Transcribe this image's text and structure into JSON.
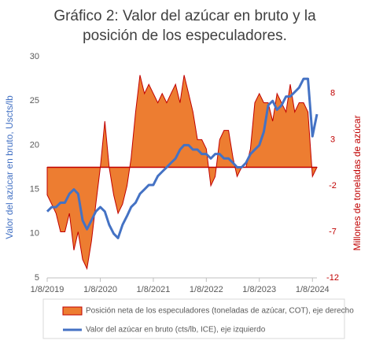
{
  "chart_data": {
    "type": "combo",
    "title": "Gráfico 2: Valor del azúcar en bruto y la posición de los especuladores.",
    "ylabel": "Valor del azúcar en bruto, Uscts/lb",
    "y2label": "Millones de toneladas de azúcar",
    "x": [
      "2019-08-01",
      "2019-09-01",
      "2019-10-01",
      "2019-11-01",
      "2019-12-01",
      "2020-01-01",
      "2020-02-01",
      "2020-03-01",
      "2020-04-01",
      "2020-05-01",
      "2020-06-01",
      "2020-07-01",
      "2020-08-01",
      "2020-09-01",
      "2020-10-01",
      "2020-11-01",
      "2020-12-01",
      "2021-01-01",
      "2021-02-01",
      "2021-03-01",
      "2021-04-01",
      "2021-05-01",
      "2021-06-01",
      "2021-07-01",
      "2021-08-01",
      "2021-09-01",
      "2021-10-01",
      "2021-11-01",
      "2021-12-01",
      "2022-01-01",
      "2022-02-01",
      "2022-03-01",
      "2022-04-01",
      "2022-05-01",
      "2022-06-01",
      "2022-07-01",
      "2022-08-01",
      "2022-09-01",
      "2022-10-01",
      "2022-11-01",
      "2022-12-01",
      "2023-01-01",
      "2023-02-01",
      "2023-03-01",
      "2023-04-01",
      "2023-05-01",
      "2023-06-01",
      "2023-07-01",
      "2023-08-01",
      "2023-09-01",
      "2023-10-01",
      "2023-11-01",
      "2023-12-01",
      "2024-01-01",
      "2024-02-01",
      "2024-03-01",
      "2024-04-01",
      "2024-05-01",
      "2024-06-01",
      "2024-07-01",
      "2024-08-01",
      "2024-09-01"
    ],
    "xlim": [
      "2019-08-01",
      "2024-09-01"
    ],
    "xticks": [
      {
        "value": "2019-08-01",
        "label": "1/8/2019"
      },
      {
        "value": "2020-08-01",
        "label": "1/8/2020"
      },
      {
        "value": "2021-08-01",
        "label": "1/8/2021"
      },
      {
        "value": "2022-08-01",
        "label": "1/8/2022"
      },
      {
        "value": "2023-08-01",
        "label": "1/8/2023"
      },
      {
        "value": "2024-08-01",
        "label": "1/8/2024"
      }
    ],
    "ylim": [
      5,
      30
    ],
    "yticks": [
      5,
      10,
      15,
      20,
      25,
      30
    ],
    "y2lim": [
      -12,
      12
    ],
    "y2ticks": [
      -12,
      -7,
      -2,
      3,
      8
    ],
    "series": [
      {
        "name": "Posición neta de los especuladores (toneladas de azúcar, COT), eje derecho",
        "type": "area",
        "axis": "y2",
        "color": "#ed7d31",
        "edgecolor": "#c00000",
        "values": [
          -3,
          -4,
          -5,
          -7,
          -7,
          -5,
          -9,
          -7,
          -10,
          -11,
          -8,
          -4,
          0,
          5,
          0,
          -3,
          -5,
          -4,
          -2,
          1,
          6,
          10,
          8,
          9,
          8,
          7,
          8,
          7,
          8,
          9,
          7,
          10,
          8,
          6,
          3,
          3,
          2,
          -2,
          -1,
          3,
          4,
          4,
          1,
          -1,
          0,
          0,
          2,
          7,
          8,
          7,
          7,
          5,
          8,
          7,
          6,
          9,
          6,
          7,
          7,
          6,
          -1,
          0
        ]
      },
      {
        "name": "Valor del azúcar en bruto (cts/lb, ICE), eje izquierdo",
        "type": "line",
        "axis": "y",
        "color": "#4472c4",
        "values": [
          12.5,
          13,
          13,
          13.5,
          13.5,
          14.5,
          15,
          14.5,
          11.5,
          10.5,
          11.5,
          12.5,
          13,
          12.5,
          11,
          10,
          9.5,
          11,
          12,
          13,
          13.5,
          14.5,
          15,
          15.5,
          15.5,
          16.5,
          17,
          17.5,
          18,
          18.5,
          19.5,
          20,
          20,
          19.5,
          19.5,
          19,
          19,
          18.5,
          19,
          19,
          18.5,
          18.5,
          18,
          17.5,
          17.5,
          18,
          19,
          19.5,
          20,
          21.5,
          24.5,
          25,
          24,
          24.5,
          25.5,
          25.5,
          26,
          26.5,
          27.5,
          27.5,
          21,
          23.5
        ]
      }
    ]
  }
}
